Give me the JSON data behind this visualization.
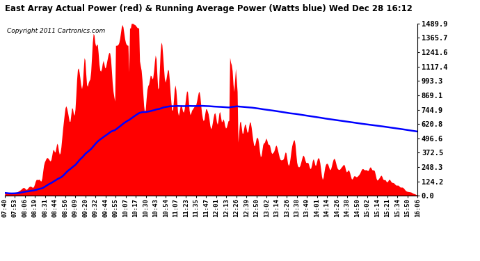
{
  "title": "East Array Actual Power (red) & Running Average Power (Watts blue) Wed Dec 28 16:12",
  "copyright": "Copyright 2011 Cartronics.com",
  "ylabel_right_values": [
    1489.9,
    1365.7,
    1241.6,
    1117.4,
    993.3,
    869.1,
    744.9,
    620.8,
    496.6,
    372.5,
    248.3,
    124.2,
    0.0
  ],
  "ylim": [
    0,
    1489.9
  ],
  "fill_color": "red",
  "avg_color": "blue",
  "background_color": "white",
  "grid_color": "#aaaaaa",
  "plot_bg_color": "white",
  "x_labels": [
    "07:40",
    "07:53",
    "08:06",
    "08:19",
    "08:31",
    "08:44",
    "08:56",
    "09:09",
    "09:20",
    "09:32",
    "09:44",
    "09:55",
    "10:07",
    "10:17",
    "10:30",
    "10:43",
    "10:54",
    "11:07",
    "11:23",
    "11:35",
    "11:47",
    "12:01",
    "12:13",
    "12:26",
    "12:39",
    "12:50",
    "13:02",
    "13:14",
    "13:26",
    "13:38",
    "13:49",
    "14:01",
    "14:14",
    "14:26",
    "14:38",
    "14:50",
    "15:02",
    "15:14",
    "15:21",
    "15:34",
    "15:50",
    "16:06"
  ]
}
